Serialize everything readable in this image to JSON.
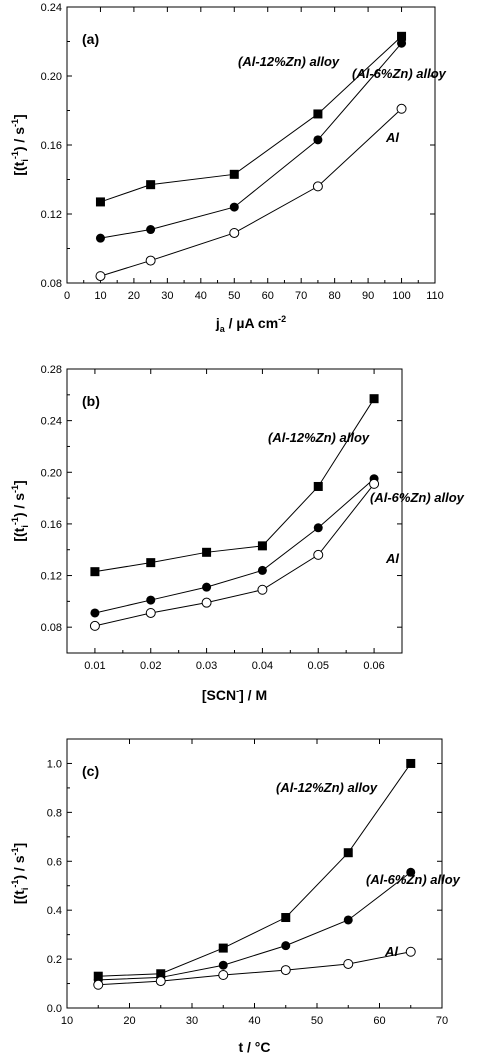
{
  "chart_data": [
    {
      "type": "line",
      "panel_label": "(a)",
      "xlabel": "j_a / µA cm^-2",
      "ylabel": "[(t_i^-1) / s^-1]",
      "xlim": [
        0,
        110
      ],
      "ylim": [
        0.08,
        0.24
      ],
      "xticks": [
        0,
        10,
        20,
        30,
        40,
        50,
        60,
        70,
        80,
        90,
        100,
        110
      ],
      "yticks": [
        0.08,
        0.12,
        0.16,
        0.2,
        0.24
      ],
      "x": [
        10,
        25,
        50,
        75,
        100
      ],
      "series": [
        {
          "name": "(Al-12%Zn) alloy",
          "marker": "square-filled",
          "values": [
            0.127,
            0.137,
            0.143,
            0.178,
            0.223
          ]
        },
        {
          "name": "(Al-6%Zn) alloy",
          "marker": "circle-filled",
          "values": [
            0.106,
            0.111,
            0.124,
            0.163,
            0.219
          ]
        },
        {
          "name": "Al",
          "marker": "circle-open",
          "values": [
            0.084,
            0.093,
            0.109,
            0.136,
            0.181
          ]
        }
      ]
    },
    {
      "type": "line",
      "panel_label": "(b)",
      "xlabel": "[SCN^-] / M",
      "ylabel": "[(t_i^-1) / s^-1]",
      "xlim": [
        0.005,
        0.065
      ],
      "ylim": [
        0.06,
        0.28
      ],
      "xticks": [
        0.01,
        0.02,
        0.03,
        0.04,
        0.05,
        0.06
      ],
      "yticks": [
        0.08,
        0.12,
        0.16,
        0.2,
        0.24,
        0.28
      ],
      "x": [
        0.01,
        0.02,
        0.03,
        0.04,
        0.05,
        0.06
      ],
      "series": [
        {
          "name": "(Al-12%Zn) alloy",
          "marker": "square-filled",
          "values": [
            0.123,
            0.13,
            0.138,
            0.143,
            0.189,
            0.257
          ]
        },
        {
          "name": "(Al-6%Zn) alloy",
          "marker": "circle-filled",
          "values": [
            0.091,
            0.101,
            0.111,
            0.124,
            0.157,
            0.195
          ]
        },
        {
          "name": "Al",
          "marker": "circle-open",
          "values": [
            0.081,
            0.091,
            0.099,
            0.109,
            0.136,
            0.191
          ]
        }
      ]
    },
    {
      "type": "line",
      "panel_label": "(c)",
      "xlabel": "t / °C",
      "ylabel": "[(t_i^-1) / s^-1]",
      "xlim": [
        10,
        70
      ],
      "ylim": [
        0.0,
        1.1
      ],
      "xticks": [
        10,
        20,
        30,
        40,
        50,
        60,
        70
      ],
      "yticks": [
        0.0,
        0.2,
        0.4,
        0.6,
        0.8,
        1.0
      ],
      "x": [
        15,
        25,
        35,
        45,
        55,
        65
      ],
      "series": [
        {
          "name": "(Al-12%Zn) alloy",
          "marker": "square-filled",
          "values": [
            0.13,
            0.14,
            0.245,
            0.37,
            0.635,
            1.0
          ]
        },
        {
          "name": "(Al-6%Zn) alloy",
          "marker": "circle-filled",
          "values": [
            0.115,
            0.125,
            0.175,
            0.255,
            0.36,
            0.555
          ]
        },
        {
          "name": "Al",
          "marker": "circle-open",
          "values": [
            0.095,
            0.11,
            0.135,
            0.155,
            0.18,
            0.23
          ]
        }
      ]
    }
  ]
}
